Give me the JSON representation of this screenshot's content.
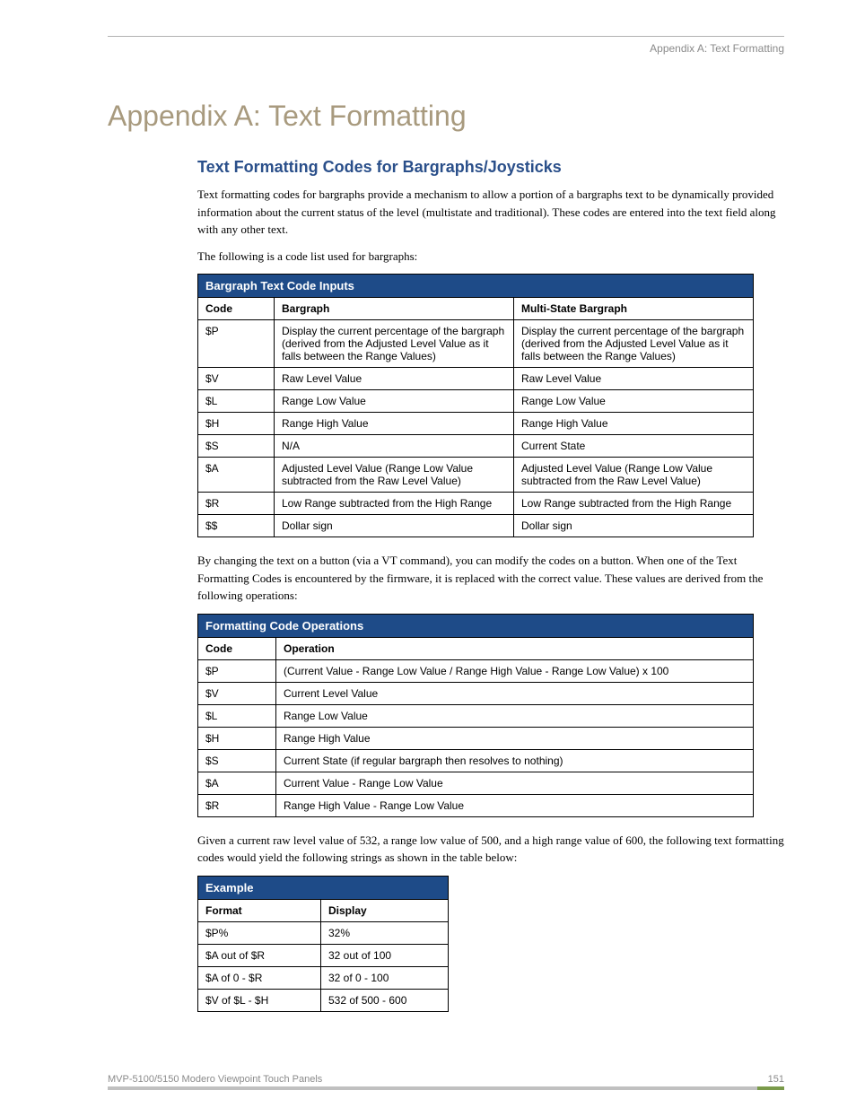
{
  "header": {
    "label": "Appendix A: Text Formatting"
  },
  "title": "Appendix A: Text Formatting",
  "section_heading": "Text Formatting Codes for Bargraphs/Joysticks",
  "para1": "Text formatting codes for bargraphs provide a mechanism to allow a portion of a bargraphs text to be dynamically provided information about the current status of the level (multistate and traditional). These codes are entered into the text field along with any other text.",
  "para2": "The following is a code list used for bargraphs:",
  "table1": {
    "title": "Bargraph Text Code Inputs",
    "columns": [
      "Code",
      "Bargraph",
      "Multi-State Bargraph"
    ],
    "rows": [
      [
        "$P",
        "Display the current percentage of the bargraph (derived from the Adjusted Level Value as it falls between the Range Values)",
        "Display the current percentage of the bargraph (derived from the Adjusted Level Value as it falls between the Range Values)"
      ],
      [
        "$V",
        "Raw Level Value",
        "Raw Level Value"
      ],
      [
        "$L",
        "Range Low Value",
        "Range Low Value"
      ],
      [
        "$H",
        "Range High Value",
        "Range High Value"
      ],
      [
        "$S",
        "N/A",
        "Current State"
      ],
      [
        "$A",
        "Adjusted Level Value (Range Low Value subtracted from the Raw Level Value)",
        "Adjusted Level Value (Range Low Value subtracted from the Raw Level Value)"
      ],
      [
        "$R",
        "Low Range subtracted from the High Range",
        "Low Range subtracted from the High Range"
      ],
      [
        "$$",
        "Dollar sign",
        "Dollar sign"
      ]
    ]
  },
  "para3": "By changing the text on a button (via a VT command), you can modify the codes on a button. When one of the Text Formatting Codes is encountered by the firmware, it is replaced with the correct value. These values are derived from the following operations:",
  "table2": {
    "title": "Formatting Code Operations",
    "columns": [
      "Code",
      "Operation"
    ],
    "rows": [
      [
        "$P",
        "(Current Value - Range Low Value / Range High Value - Range Low Value) x 100"
      ],
      [
        "$V",
        "Current Level Value"
      ],
      [
        "$L",
        "Range Low Value"
      ],
      [
        "$H",
        "Range High Value"
      ],
      [
        "$S",
        "Current State (if regular bargraph then resolves to nothing)"
      ],
      [
        "$A",
        "Current Value - Range Low Value"
      ],
      [
        "$R",
        "Range High Value - Range Low Value"
      ]
    ]
  },
  "para4": "Given a current raw level value of 532, a range low value of 500, and a high range value of 600, the following text formatting codes would yield the following strings as shown in the table below:",
  "table3": {
    "title": "Example",
    "columns": [
      "Format",
      "Display"
    ],
    "rows": [
      [
        "$P%",
        "32%"
      ],
      [
        "$A out of $R",
        "32 out of 100"
      ],
      [
        "$A of 0 - $R",
        "32 of 0 - 100"
      ],
      [
        "$V of $L - $H",
        "532 of 500 - 600"
      ]
    ]
  },
  "footer": {
    "product": "MVP-5100/5150 Modero Viewpoint  Touch Panels",
    "page": "151"
  },
  "colors": {
    "heading_tan": "#a89a7e",
    "heading_blue": "#2a4f8a",
    "table_header_bg": "#1e4b88",
    "table_border": "#000000",
    "footer_gray": "#8a8a8a",
    "footer_accent": "#7a9a4a"
  }
}
